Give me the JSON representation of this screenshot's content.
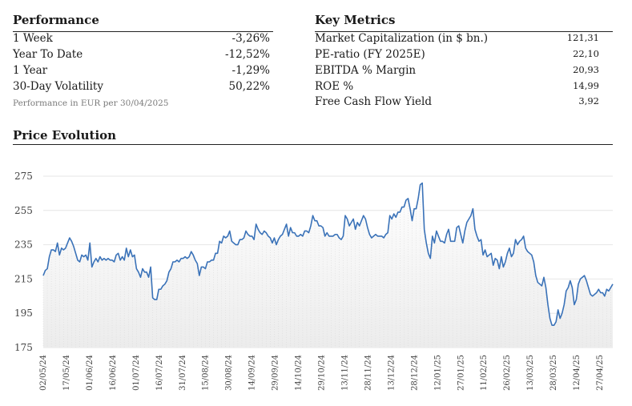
{
  "performance": {
    "title": "Performance",
    "rows": [
      {
        "label": "1 Week",
        "value": "-3,26%"
      },
      {
        "label": "Year To Date",
        "value": "-12,52%"
      },
      {
        "label": "1 Year",
        "value": "-1,29%"
      },
      {
        "label": "30-Day Volatility",
        "value": "50,22%"
      }
    ],
    "note": "Performance in EUR per 30/04/2025"
  },
  "key_metrics": {
    "title": "Key Metrics",
    "rows": [
      {
        "label": "Market Capitalization (in $ bn.)",
        "value": "121,31"
      },
      {
        "label": "PE-ratio (FY 2025E)",
        "value": "22,10"
      },
      {
        "label": "EBITDA % Margin",
        "value": "20,93"
      },
      {
        "label": "ROE %",
        "value": "14,99"
      },
      {
        "label": "Free Cash Flow Yield",
        "value": "3,92"
      }
    ]
  },
  "price_evolution": {
    "title": "Price Evolution"
  },
  "colors": {
    "line": "#3a72b8",
    "grid": "#e6e6e6",
    "fill": "#ececec"
  },
  "chart_data": {
    "type": "area",
    "title": "Price Evolution",
    "ylim": [
      175,
      275
    ],
    "yticks": [
      275,
      255,
      235,
      215,
      195,
      175
    ],
    "grid": true,
    "xtick_labels": [
      "02/05/24",
      "17/05/24",
      "01/06/24",
      "16/06/24",
      "01/07/24",
      "16/07/24",
      "31/07/24",
      "15/08/24",
      "30/08/24",
      "14/09/24",
      "29/09/24",
      "14/10/24",
      "29/10/24",
      "13/11/24",
      "28/11/24",
      "13/12/24",
      "28/12/24",
      "12/01/25",
      "27/01/25",
      "11/02/25",
      "26/02/25",
      "13/03/25",
      "28/03/25",
      "12/04/25",
      "27/04/25"
    ],
    "series": [
      {
        "values": [
          217,
          220,
          221,
          228,
          232,
          232,
          231,
          236,
          229,
          233,
          232,
          233,
          236,
          239,
          237,
          234,
          230,
          226,
          225,
          229,
          228,
          229,
          226,
          236,
          222,
          225,
          227,
          225,
          228,
          226,
          227,
          226,
          227,
          226,
          226,
          225,
          229,
          230,
          226,
          228,
          226,
          233,
          228,
          232,
          228,
          229,
          221,
          219,
          216,
          221,
          219,
          219,
          216,
          222,
          204,
          203,
          203,
          209,
          209,
          211,
          212,
          214,
          219,
          221,
          225,
          225,
          226,
          225,
          227,
          227,
          228,
          227,
          228,
          231,
          229,
          226,
          224,
          217,
          222,
          222,
          221,
          225,
          225,
          226,
          226,
          230,
          230,
          237,
          236,
          240,
          239,
          240,
          243,
          237,
          236,
          235,
          235,
          238,
          238,
          239,
          243,
          241,
          240,
          240,
          238,
          247,
          244,
          242,
          241,
          243,
          242,
          240,
          239,
          236,
          239,
          235,
          238,
          240,
          241,
          244,
          247,
          240,
          245,
          242,
          242,
          240,
          240,
          241,
          240,
          243,
          243,
          242,
          246,
          252,
          249,
          249,
          246,
          246,
          245,
          240,
          242,
          240,
          240,
          240,
          241,
          241,
          239,
          238,
          240,
          252,
          250,
          246,
          248,
          250,
          244,
          248,
          246,
          249,
          252,
          250,
          245,
          241,
          239,
          240,
          241,
          240,
          240,
          240,
          239,
          241,
          242,
          252,
          250,
          253,
          251,
          254,
          254,
          257,
          257,
          261,
          262,
          256,
          249,
          256,
          256,
          262,
          270,
          271,
          244,
          236,
          230,
          227,
          240,
          236,
          243,
          240,
          237,
          237,
          236,
          241,
          244,
          237,
          237,
          237,
          245,
          246,
          241,
          236,
          243,
          248,
          250,
          252,
          256,
          244,
          240,
          237,
          238,
          229,
          232,
          228,
          229,
          230,
          223,
          227,
          226,
          221,
          228,
          222,
          225,
          230,
          233,
          228,
          230,
          238,
          235,
          237,
          238,
          240,
          233,
          231,
          230,
          229,
          225,
          217,
          213,
          212,
          211,
          216,
          210,
          200,
          192,
          188,
          188,
          190,
          197,
          192,
          195,
          200,
          208,
          210,
          214,
          210,
          200,
          203,
          212,
          215,
          216,
          217,
          214,
          210,
          206,
          205,
          206,
          207,
          209,
          207,
          207,
          205,
          209,
          208,
          210,
          212
        ]
      }
    ]
  }
}
